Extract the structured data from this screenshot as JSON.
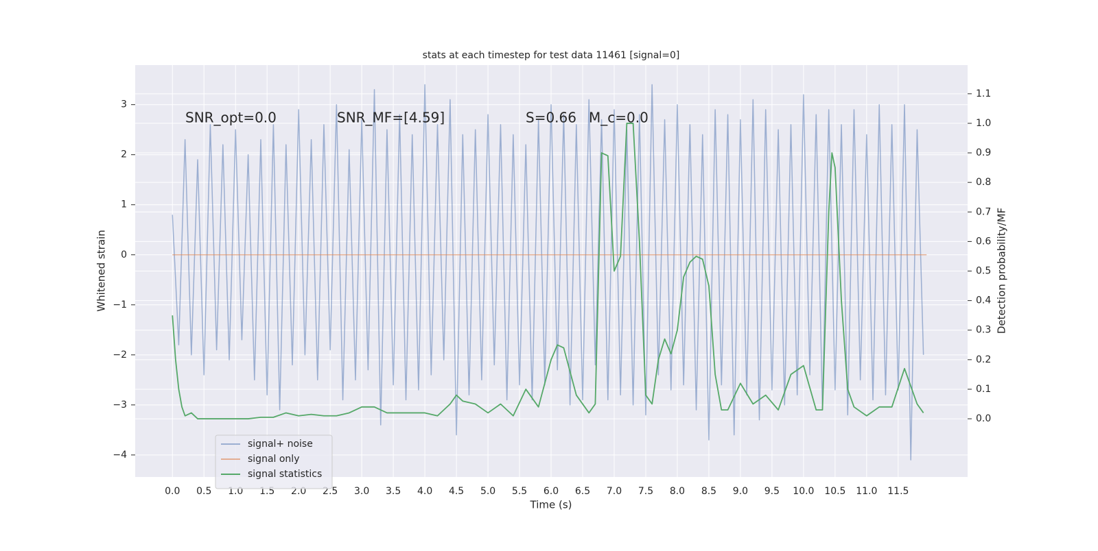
{
  "chart_data": {
    "type": "line",
    "title": "stats at each timestep for test data 11461 [signal=0]",
    "xlabel": "Time (s)",
    "ylabel": "Whitened strain",
    "y2label": "Detection probability/MF",
    "annotations": [
      "SNR_opt=0.0",
      "SNR_MF=[4.59]",
      "S=0.66",
      "M_c=0.0"
    ],
    "xlim": [
      -0.59,
      12.6
    ],
    "ylim": [
      -4.44,
      3.79
    ],
    "y2lim": [
      -0.197,
      1.197
    ],
    "xticks": [
      {
        "value": 0,
        "label": "0.0"
      },
      {
        "value": 0.5,
        "label": "0.5"
      },
      {
        "value": 1,
        "label": "1.0"
      },
      {
        "value": 1.5,
        "label": "1.5"
      },
      {
        "value": 2,
        "label": "2.0"
      },
      {
        "value": 2.5,
        "label": "2.5"
      },
      {
        "value": 3,
        "label": "3.0"
      },
      {
        "value": 3.5,
        "label": "3.5"
      },
      {
        "value": 4,
        "label": "4.0"
      },
      {
        "value": 4.5,
        "label": "4.5"
      },
      {
        "value": 5,
        "label": "5.0"
      },
      {
        "value": 5.5,
        "label": "5.5"
      },
      {
        "value": 6,
        "label": "6.0"
      },
      {
        "value": 6.5,
        "label": "6.5"
      },
      {
        "value": 7,
        "label": "7.0"
      },
      {
        "value": 7.5,
        "label": "7.5"
      },
      {
        "value": 8,
        "label": "8.0"
      },
      {
        "value": 8.5,
        "label": "8.5"
      },
      {
        "value": 9,
        "label": "9.0"
      },
      {
        "value": 9.5,
        "label": "9.5"
      },
      {
        "value": 10,
        "label": "10.0"
      },
      {
        "value": 10.5,
        "label": "10.5"
      },
      {
        "value": 11,
        "label": "11.0"
      },
      {
        "value": 11.5,
        "label": "11.5"
      }
    ],
    "yticks": [
      {
        "value": -4,
        "label": "−4"
      },
      {
        "value": -3,
        "label": "−3"
      },
      {
        "value": -2,
        "label": "−2"
      },
      {
        "value": -1,
        "label": "−1"
      },
      0,
      1,
      2,
      3
    ],
    "y2ticks": [
      {
        "value": 0,
        "label": "0.0"
      },
      {
        "value": 0.1,
        "label": "0.1"
      },
      {
        "value": 0.2,
        "label": "0.2"
      },
      {
        "value": 0.3,
        "label": "0.3"
      },
      {
        "value": 0.4,
        "label": "0.4"
      },
      {
        "value": 0.5,
        "label": "0.5"
      },
      {
        "value": 0.6,
        "label": "0.6"
      },
      {
        "value": 0.7,
        "label": "0.7"
      },
      {
        "value": 0.8,
        "label": "0.8"
      },
      {
        "value": 0.9,
        "label": "0.9"
      },
      {
        "value": 1,
        "label": "1.0"
      },
      {
        "value": 1.1,
        "label": "1.1"
      }
    ],
    "grid": true,
    "legend": "lower left",
    "series": [
      {
        "name": "signal+ noise",
        "color": "#4c72b0",
        "opacity": 0.5,
        "x": [
          0,
          0.1,
          0.2,
          0.3,
          0.4,
          0.5,
          0.6,
          0.7,
          0.8,
          0.9,
          1,
          1.1,
          1.2,
          1.3,
          1.4,
          1.5,
          1.6,
          1.7,
          1.8,
          1.9,
          2,
          2.1,
          2.2,
          2.3,
          2.4,
          2.5,
          2.6,
          2.7,
          2.8,
          2.9,
          3,
          3.1,
          3.2,
          3.3,
          3.4,
          3.5,
          3.6,
          3.7,
          3.8,
          3.9,
          4,
          4.1,
          4.2,
          4.3,
          4.4,
          4.5,
          4.6,
          4.7,
          4.8,
          4.9,
          5,
          5.1,
          5.2,
          5.3,
          5.4,
          5.5,
          5.6,
          5.7,
          5.8,
          5.9,
          6,
          6.1,
          6.2,
          6.3,
          6.4,
          6.5,
          6.6,
          6.7,
          6.8,
          6.9,
          7,
          7.1,
          7.2,
          7.3,
          7.4,
          7.5,
          7.6,
          7.7,
          7.8,
          7.9,
          8,
          8.1,
          8.2,
          8.3,
          8.4,
          8.5,
          8.6,
          8.7,
          8.8,
          8.9,
          9,
          9.1,
          9.2,
          9.3,
          9.4,
          9.5,
          9.6,
          9.7,
          9.8,
          9.9,
          10,
          10.1,
          10.2,
          10.3,
          10.4,
          10.5,
          10.6,
          10.7,
          10.8,
          10.9,
          11,
          11.1,
          11.2,
          11.3,
          11.4,
          11.5,
          11.6,
          11.7,
          11.8,
          11.9
        ],
        "values": [
          0.8,
          -1.8,
          2.3,
          -2.0,
          1.9,
          -2.4,
          2.6,
          -1.9,
          2.2,
          -2.1,
          2.5,
          -1.7,
          2.0,
          -2.5,
          2.3,
          -2.8,
          2.6,
          -3.1,
          2.2,
          -2.2,
          2.9,
          -2.0,
          2.3,
          -2.5,
          2.6,
          -1.9,
          3.0,
          -2.9,
          2.1,
          -2.5,
          2.7,
          -2.3,
          3.3,
          -3.4,
          2.5,
          -2.6,
          2.8,
          -2.9,
          2.4,
          -2.7,
          3.4,
          -2.4,
          2.6,
          -2.1,
          3.1,
          -3.6,
          2.4,
          -2.8,
          2.5,
          -2.5,
          2.8,
          -2.2,
          2.6,
          -2.9,
          2.4,
          -2.6,
          2.2,
          -2.9,
          2.7,
          -2.6,
          3.0,
          -2.3,
          2.8,
          -3.0,
          2.6,
          -2.9,
          3.1,
          -2.2,
          2.7,
          -2.9,
          2.9,
          -2.8,
          2.5,
          -3.0,
          2.8,
          -3.2,
          3.4,
          -2.4,
          2.7,
          -2.7,
          3.0,
          -2.6,
          2.6,
          -3.1,
          2.4,
          -3.7,
          2.9,
          -2.6,
          2.8,
          -3.6,
          2.7,
          -2.8,
          3.1,
          -3.3,
          2.9,
          -2.7,
          2.5,
          -3.0,
          2.6,
          -2.8,
          3.2,
          -2.4,
          2.8,
          -3.1,
          2.9,
          -2.7,
          2.6,
          -3.2,
          2.9,
          -2.5,
          2.4,
          -2.9,
          3.0,
          -2.8,
          2.6,
          -2.7,
          3.0,
          -4.1,
          2.5,
          -2.0
        ]
      },
      {
        "name": "signal only",
        "color": "#dd8452",
        "opacity": 0.6,
        "x": [
          0,
          11.95
        ],
        "values": [
          0,
          0
        ]
      },
      {
        "name": "signal statistics",
        "color": "#55a868",
        "opacity": 1,
        "axis": "y2",
        "x": [
          0,
          0.05,
          0.1,
          0.15,
          0.2,
          0.3,
          0.4,
          0.5,
          0.6,
          0.8,
          1.0,
          1.2,
          1.4,
          1.6,
          1.8,
          2.0,
          2.2,
          2.4,
          2.6,
          2.8,
          3.0,
          3.2,
          3.4,
          3.6,
          3.8,
          4.0,
          4.2,
          4.4,
          4.5,
          4.6,
          4.8,
          5.0,
          5.2,
          5.4,
          5.6,
          5.8,
          6.0,
          6.1,
          6.2,
          6.4,
          6.6,
          6.7,
          6.8,
          6.9,
          7.0,
          7.1,
          7.2,
          7.3,
          7.4,
          7.5,
          7.6,
          7.7,
          7.8,
          7.9,
          8.0,
          8.1,
          8.2,
          8.3,
          8.4,
          8.5,
          8.6,
          8.7,
          8.8,
          9.0,
          9.2,
          9.4,
          9.6,
          9.8,
          10.0,
          10.2,
          10.3,
          10.4,
          10.45,
          10.5,
          10.6,
          10.7,
          10.8,
          11.0,
          11.2,
          11.4,
          11.6,
          11.8,
          11.9
        ],
        "values": [
          0.35,
          0.2,
          0.1,
          0.04,
          0.01,
          0.02,
          0.0,
          0.0,
          0.0,
          0.0,
          0.0,
          0.0,
          0.005,
          0.005,
          0.02,
          0.01,
          0.015,
          0.01,
          0.01,
          0.02,
          0.04,
          0.04,
          0.02,
          0.02,
          0.02,
          0.02,
          0.01,
          0.05,
          0.08,
          0.06,
          0.05,
          0.02,
          0.05,
          0.01,
          0.1,
          0.04,
          0.2,
          0.25,
          0.24,
          0.08,
          0.02,
          0.05,
          0.9,
          0.89,
          0.5,
          0.55,
          1.0,
          1.0,
          0.6,
          0.08,
          0.05,
          0.2,
          0.27,
          0.22,
          0.3,
          0.48,
          0.53,
          0.55,
          0.54,
          0.45,
          0.15,
          0.03,
          0.03,
          0.12,
          0.05,
          0.08,
          0.03,
          0.15,
          0.18,
          0.03,
          0.03,
          0.7,
          0.9,
          0.85,
          0.4,
          0.1,
          0.04,
          0.01,
          0.04,
          0.04,
          0.17,
          0.05,
          0.02
        ]
      }
    ]
  }
}
